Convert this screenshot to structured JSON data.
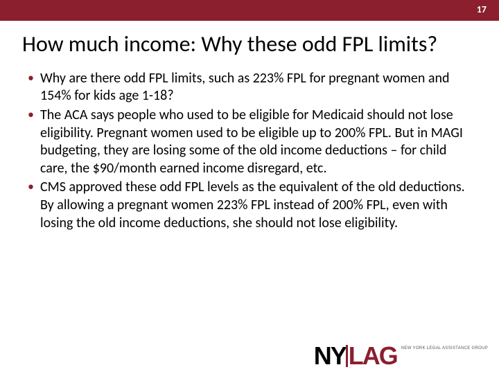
{
  "header": {
    "page_number": "17",
    "bar_color": "#8b1f2e"
  },
  "title": "How much income:  Why these odd FPL limits?",
  "bullets": [
    "Why are there odd FPL limits, such as 223% FPL for pregnant women and 154% for kids age 1-18?",
    "The ACA says people who used to be eligible for Medicaid should not lose eligibility.  Pregnant women used to be eligible up to 200% FPL.  But in MAGI budgeting, they are losing some of the old income deductions – for child care, the $90/month earned income disregard, etc.",
    " CMS approved these odd FPL levels as the equivalent of the old deductions.  By allowing a pregnant women 223% FPL instead of 200% FPL, even with losing the old income deductions, she should not lose eligibility."
  ],
  "logo": {
    "ny": "NY",
    "lag": "LAG",
    "subtitle_line1": "NEW YORK LEGAL ASSISTANCE GROUP"
  }
}
